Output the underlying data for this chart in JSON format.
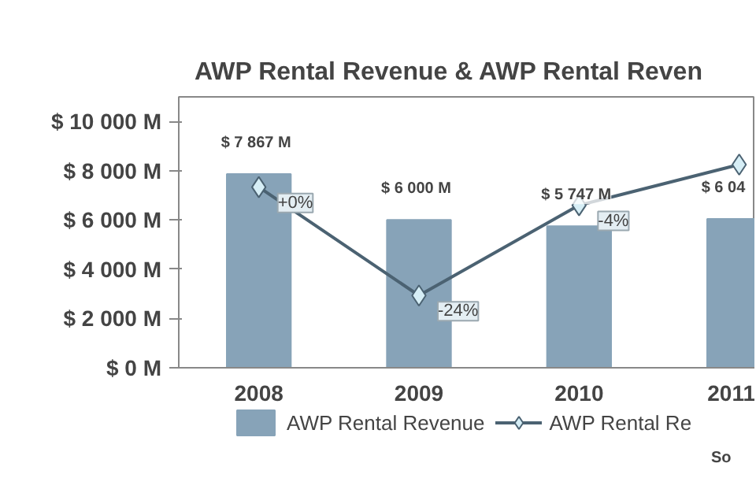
{
  "chart_data": {
    "type": "bar",
    "title": "AWP Rental Revenue & AWP Rental Reven",
    "categories": [
      "2008",
      "2009",
      "2010",
      "2011"
    ],
    "series": [
      {
        "name": "AWP Rental Revenue",
        "color": "#87a3b8",
        "values": [
          7867,
          6000,
          5747,
          6044
        ],
        "value_labels": [
          "$ 7 867 M",
          "$ 6 000 M",
          "$ 5 747 M",
          "$ 6 04"
        ]
      },
      {
        "name": "AWP Rental Re",
        "type": "line",
        "axis": "y2",
        "color": "#4b6272",
        "marker": "diamond",
        "values": [
          0,
          -24,
          -4,
          5
        ],
        "value_labels": [
          "+0%",
          "-24%",
          "-4%",
          null
        ]
      }
    ],
    "ylim": [
      0,
      11000
    ],
    "yticks": [
      {
        "value": 0,
        "label": "$ 0 M"
      },
      {
        "value": 2000,
        "label": "$ 2 000 M"
      },
      {
        "value": 4000,
        "label": "$ 4 000 M"
      },
      {
        "value": 6000,
        "label": "$ 6 000 M"
      },
      {
        "value": 8000,
        "label": "$ 8 000 M"
      },
      {
        "value": 10000,
        "label": "$ 10 000 M"
      }
    ],
    "y2lim": [
      -40,
      20
    ],
    "grid": false,
    "legend": "bottom",
    "annotations": [
      "So"
    ]
  }
}
